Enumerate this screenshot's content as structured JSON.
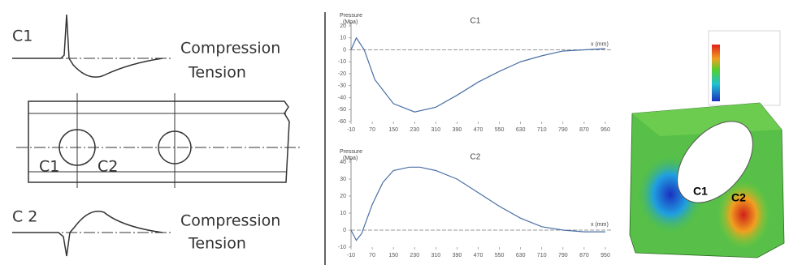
{
  "sketch": {
    "profiles": [
      {
        "label": "C1",
        "upper": "Compression",
        "lower": "Tension"
      },
      {
        "label": "C 2",
        "upper": "Compression",
        "lower": "Tension"
      }
    ],
    "plate_labels": [
      "C1",
      "C2"
    ]
  },
  "chart_data": [
    {
      "type": "line",
      "title": "C1",
      "y_label": [
        "Pressure",
        "(Mpa)"
      ],
      "x_label": "x (mm)",
      "x": [
        -10,
        10,
        40,
        80,
        150,
        230,
        310,
        390,
        470,
        550,
        630,
        710,
        790,
        870,
        950
      ],
      "values": [
        0,
        10,
        0,
        -25,
        -45,
        -52,
        -48,
        -38,
        -27,
        -18,
        -10,
        -5,
        -1,
        0,
        1
      ],
      "color": "#4a6fa5",
      "xlim": [
        -10,
        950
      ],
      "ylim": [
        -60,
        20
      ],
      "xticks": [
        -10,
        70,
        150,
        230,
        310,
        390,
        470,
        550,
        630,
        710,
        790,
        870,
        950
      ],
      "yticks": [
        20,
        10,
        0,
        -10,
        -20,
        -30,
        -40,
        -50,
        -60
      ]
    },
    {
      "type": "line",
      "title": "C2",
      "y_label": [
        "Pressure",
        "(Mpa)"
      ],
      "x_label": "x (mm)",
      "x": [
        -10,
        10,
        30,
        70,
        110,
        150,
        210,
        250,
        310,
        390,
        470,
        550,
        630,
        710,
        790,
        870,
        950
      ],
      "values": [
        0,
        -6,
        -2,
        15,
        28,
        35,
        37,
        37,
        35,
        30,
        22,
        14,
        7,
        2,
        0,
        -1,
        -1
      ],
      "color": "#4a6fa5",
      "xlim": [
        -10,
        950
      ],
      "ylim": [
        -10,
        40
      ],
      "xticks": [
        -10,
        70,
        150,
        230,
        310,
        390,
        470,
        550,
        630,
        710,
        790,
        870,
        950
      ],
      "yticks": [
        40,
        30,
        20,
        10,
        0,
        -10
      ]
    }
  ],
  "fea": {
    "labels": [
      "C1",
      "C2"
    ]
  }
}
